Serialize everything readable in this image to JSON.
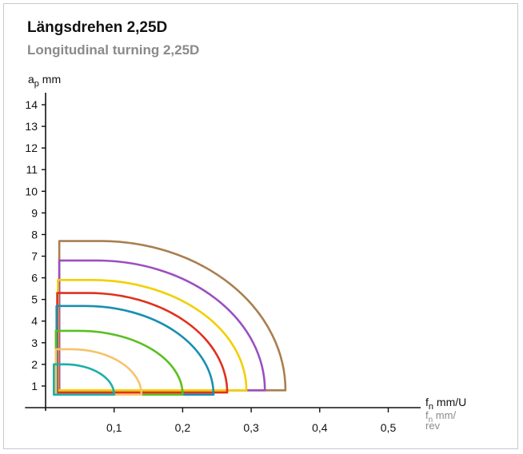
{
  "header": {
    "title": "Längsdrehen 2,25D",
    "subtitle": "Longitudinal turning 2,25D"
  },
  "chart_data": {
    "type": "area",
    "title": "Längsdrehen 2,25D",
    "subtitle": "Longitudinal turning 2,25D",
    "ylabel_main": "a",
    "ylabel_sub": "p",
    "ylabel_unit": " mm",
    "xlabel_main": "f",
    "xlabel_sub": "n",
    "xlabel_unit": " mm/U",
    "xlabel2_main": "f",
    "xlabel2_sub": "n",
    "xlabel2_unit_line1": " mm/",
    "xlabel2_unit_line2": "rev",
    "xlim": [
      -0.03,
      0.55
    ],
    "ylim": [
      0,
      15
    ],
    "x_ticks": [
      0.1,
      0.2,
      0.3,
      0.4,
      0.5
    ],
    "x_tick_labels": [
      "0,1",
      "0,2",
      "0,3",
      "0,4",
      "0,5"
    ],
    "y_ticks": [
      1,
      2,
      3,
      4,
      5,
      6,
      7,
      8,
      9,
      10,
      11,
      12,
      13,
      14
    ],
    "y_tick_labels": [
      "1",
      "2",
      "3",
      "4",
      "5",
      "6",
      "7",
      "8",
      "9",
      "10",
      "11",
      "12",
      "13",
      "14"
    ],
    "grid": false,
    "series": [
      {
        "x_min": 0.02,
        "x_max": 0.35,
        "y_min": 0.8,
        "y_max": 7.7,
        "color": "#a97f4f"
      },
      {
        "x_min": 0.02,
        "x_max": 0.32,
        "y_min": 0.8,
        "y_max": 6.8,
        "color": "#9b4fc0"
      },
      {
        "x_min": 0.018,
        "x_max": 0.293,
        "y_min": 0.8,
        "y_max": 5.9,
        "color": "#f2d000"
      },
      {
        "x_min": 0.017,
        "x_max": 0.265,
        "y_min": 0.7,
        "y_max": 5.3,
        "color": "#e0301e"
      },
      {
        "x_min": 0.016,
        "x_max": 0.245,
        "y_min": 0.6,
        "y_max": 4.7,
        "color": "#1a8fb0"
      },
      {
        "x_min": 0.015,
        "x_max": 0.2,
        "y_min": 0.6,
        "y_max": 3.55,
        "color": "#5bbf20"
      },
      {
        "x_min": 0.015,
        "x_max": 0.14,
        "y_min": 0.6,
        "y_max": 2.7,
        "color": "#f7c36a"
      },
      {
        "x_min": 0.012,
        "x_max": 0.1,
        "y_min": 0.6,
        "y_max": 2.0,
        "color": "#1ab0a8"
      }
    ]
  }
}
